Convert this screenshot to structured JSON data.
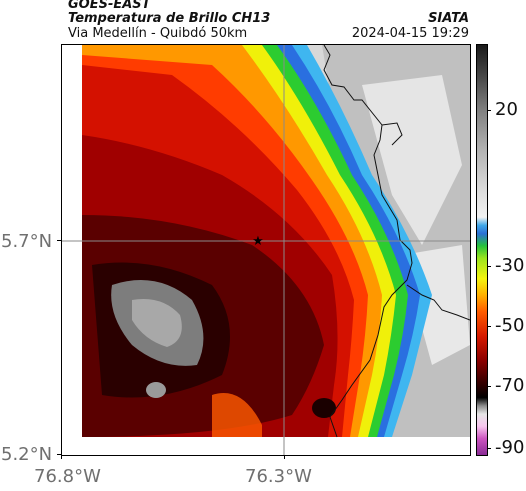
{
  "header": {
    "satellite": "GOES-EAST",
    "product": "Temperatura de Brillo CH13",
    "location": "Via Medellín - Quibdó 50km",
    "organization": "SIATA",
    "datetime": "2024-04-15 19:29"
  },
  "axes": {
    "y_ticks": [
      "5.7°N",
      "5.2°N"
    ],
    "x_ticks": [
      "76.8°W",
      "76.3°W"
    ]
  },
  "colorbar": {
    "labels": [
      "20",
      "-30",
      "-50",
      "-70",
      "-90"
    ]
  },
  "map": {
    "marker": "star",
    "palette": {
      "deep": "#2a0000",
      "dark_red": "#7a0000",
      "red": "#d41100",
      "orange_red": "#ff3c00",
      "orange": "#ff9800",
      "yellow": "#f0f00a",
      "green": "#2ccc30",
      "blue": "#2a6fe0",
      "cyan": "#3fb6f0",
      "cloud_light": "#e6e6e6",
      "cloud_mid": "#bfbfbf",
      "gray_core": "#7d7d7d",
      "gray_core_light": "#a8a8a8"
    }
  }
}
